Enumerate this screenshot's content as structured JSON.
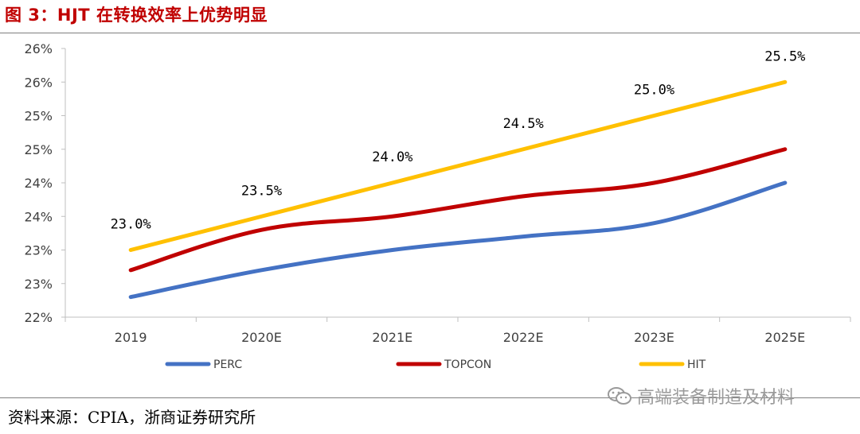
{
  "figure": {
    "title": "图 3：HJT 在转换效率上优势明显",
    "source": "资料来源：CPIA，浙商证券研究所",
    "watermark": "高端装备制造及材料"
  },
  "colors": {
    "title": "#c00000",
    "PERC": "#4472c4",
    "TOPCON": "#c00000",
    "HIT": "#ffc000"
  },
  "chart_data": {
    "type": "line",
    "title": "",
    "xlabel": "",
    "ylabel": "",
    "categories": [
      "2019",
      "2020E",
      "2021E",
      "2022E",
      "2023E",
      "2025E"
    ],
    "ylim": [
      22.0,
      26.0
    ],
    "y_ticks": [
      22.0,
      22.5,
      23.0,
      23.5,
      24.0,
      24.5,
      25.0,
      25.5,
      26.0
    ],
    "y_tick_labels": [
      "22%",
      "23%",
      "23%",
      "24%",
      "24%",
      "25%",
      "25%",
      "26%",
      "26%"
    ],
    "grid": false,
    "legend_position": "bottom",
    "series": [
      {
        "name": "PERC",
        "values": [
          22.3,
          22.7,
          23.0,
          23.2,
          23.4,
          24.0
        ],
        "labels": []
      },
      {
        "name": "TOPCON",
        "values": [
          22.7,
          23.3,
          23.5,
          23.8,
          24.0,
          24.5
        ],
        "labels": []
      },
      {
        "name": "HIT",
        "values": [
          23.0,
          23.5,
          24.0,
          24.5,
          25.0,
          25.5
        ],
        "labels": [
          "23.0%",
          "23.5%",
          "24.0%",
          "24.5%",
          "25.0%",
          "25.5%"
        ]
      }
    ]
  }
}
